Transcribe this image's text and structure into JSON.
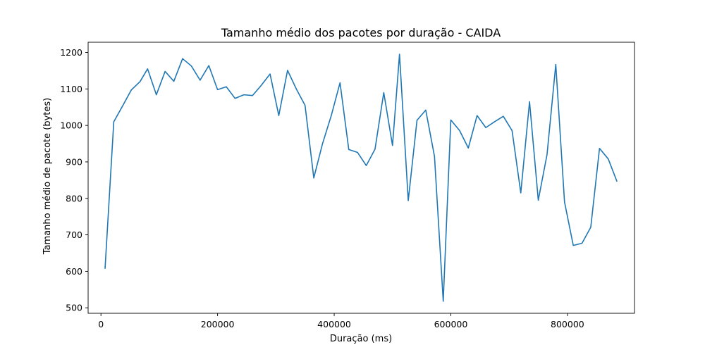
{
  "chart_data": {
    "type": "line",
    "title": "Tamanho médio dos pacotes por duração - CAIDA",
    "xlabel": "Duração (ms)",
    "ylabel": "Tamanho médio de pacote (bytes)",
    "xlim": [
      -22000,
      915000
    ],
    "ylim": [
      485,
      1228
    ],
    "xticks": [
      0,
      200000,
      400000,
      600000,
      800000
    ],
    "yticks": [
      500,
      600,
      700,
      800,
      900,
      1000,
      1100,
      1200
    ],
    "grid": false,
    "color": "#1f77b4",
    "series": [
      {
        "x": [
          7000,
          22000,
          37000,
          52000,
          67000,
          80000,
          95000,
          110000,
          125000,
          140000,
          155000,
          170000,
          185000,
          200000,
          215000,
          230000,
          245000,
          260000,
          275000,
          290000,
          305000,
          320000,
          335000,
          350000,
          365000,
          380000,
          395000,
          410000,
          425000,
          440000,
          455000,
          470000,
          485000,
          500000,
          512000,
          527000,
          542000,
          557000,
          572000,
          587000,
          600000,
          615000,
          630000,
          645000,
          660000,
          675000,
          690000,
          705000,
          720000,
          735000,
          750000,
          765000,
          780000,
          795000,
          810000,
          825000,
          840000,
          855000,
          870000,
          885000
        ],
        "y": [
          607,
          1010,
          1053,
          1097,
          1120,
          1155,
          1084,
          1148,
          1121,
          1183,
          1163,
          1124,
          1164,
          1098,
          1106,
          1074,
          1084,
          1082,
          1110,
          1141,
          1027,
          1151,
          1100,
          1055,
          856,
          950,
          1027,
          1117,
          934,
          926,
          890,
          935,
          1090,
          945,
          1195,
          794,
          1014,
          1042,
          915,
          518,
          1015,
          986,
          938,
          1027,
          994,
          1010,
          1025,
          986,
          815,
          1065,
          795,
          920,
          1167,
          790,
          671,
          677,
          721,
          937,
          908,
          846
        ]
      }
    ]
  }
}
